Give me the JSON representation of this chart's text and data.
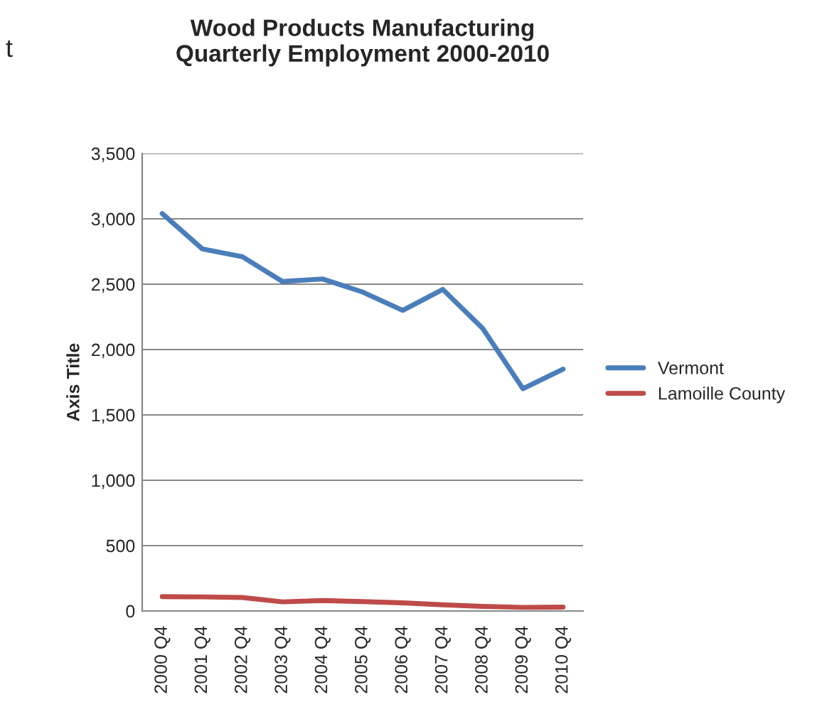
{
  "chart_data": {
    "type": "line",
    "title": "Wood Products Manufacturing\nQuarterly Employment 2000-2010",
    "ylabel": "Axis Title",
    "categories": [
      "2000 Q4",
      "2001 Q4",
      "2002 Q4",
      "2003 Q4",
      "2004 Q4",
      "2005 Q4",
      "2006 Q4",
      "2007 Q4",
      "2008 Q4",
      "2009 Q4",
      "2010 Q4"
    ],
    "series": [
      {
        "name": "Vermont",
        "color": "#4a7ebb",
        "values": [
          3040,
          2770,
          2710,
          2520,
          2540,
          2440,
          2300,
          2460,
          2160,
          1700,
          1850
        ]
      },
      {
        "name": "Lamoille County",
        "color": "#be4b48",
        "values": [
          110,
          108,
          103,
          70,
          80,
          72,
          62,
          48,
          35,
          28,
          30
        ]
      }
    ],
    "ylim": [
      0,
      3500
    ],
    "yticks": [
      {
        "value": 0,
        "label": "0"
      },
      {
        "value": 500,
        "label": "500"
      },
      {
        "value": 1000,
        "label": "1,000"
      },
      {
        "value": 1500,
        "label": "1,500"
      },
      {
        "value": 2000,
        "label": "2,000"
      },
      {
        "value": 2500,
        "label": "2,500"
      },
      {
        "value": 3000,
        "label": "3,000"
      },
      {
        "value": 3500,
        "label": "3,500"
      }
    ],
    "grid": "y",
    "legend": "right",
    "marker": "none",
    "line_style": "solid",
    "annotations": [
      "t"
    ]
  }
}
